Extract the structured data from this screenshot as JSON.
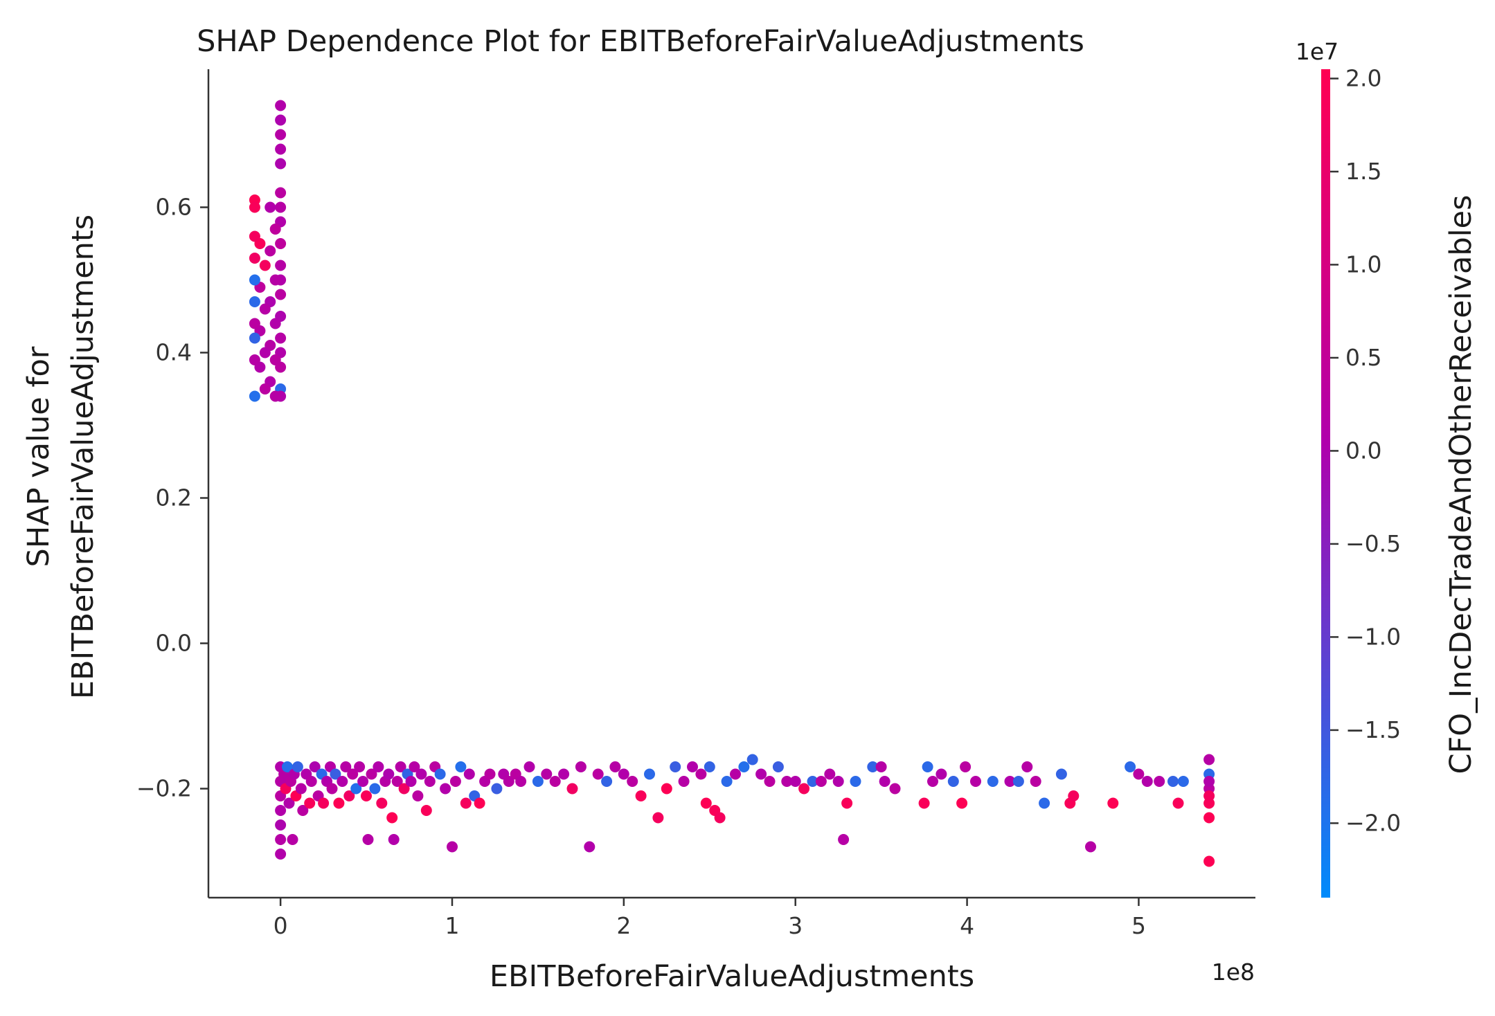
{
  "chart_data": {
    "type": "scatter",
    "title": "SHAP Dependence Plot for EBITBeforeFairValueAdjustments",
    "xlabel": "EBITBeforeFairValueAdjustments",
    "ylabel": [
      "SHAP value for",
      "EBITBeforeFairValueAdjustments"
    ],
    "x_offset_label": "1e8",
    "x_multiplier": 100000000,
    "xlim": [
      -0.42,
      5.68
    ],
    "ylim": [
      -0.35,
      0.79
    ],
    "x_ticks": [
      0,
      1,
      2,
      3,
      4,
      5
    ],
    "x_tick_labels": [
      "0",
      "1",
      "2",
      "3",
      "4",
      "5"
    ],
    "y_ticks": [
      -0.2,
      0.0,
      0.2,
      0.4,
      0.6
    ],
    "y_tick_labels": [
      "−0.2",
      "0.0",
      "0.2",
      "0.4",
      "0.6"
    ],
    "grid": false,
    "legend": "none",
    "colorbar": {
      "label": "CFO_IncDecTradeAndOtherReceivables",
      "offset_label": "1e7",
      "range": [
        -2.4,
        2.05
      ],
      "ticks": [
        -2.0,
        -1.5,
        -1.0,
        -0.5,
        0.0,
        0.5,
        1.0,
        1.5,
        2.0
      ],
      "tick_labels": [
        "−2.0",
        "−1.5",
        "−1.0",
        "−0.5",
        "0.0",
        "0.5",
        "1.0",
        "1.5",
        "2.0"
      ],
      "colormap": [
        "#008bfb",
        "#ff0052"
      ]
    },
    "colors": {
      "blue": "#008bfb",
      "purple": "#b000ac",
      "magenta": "#c8009a",
      "red": "#ff0052"
    },
    "points_note_units": "x in 1e8 units, y in SHAP units, c in 1e7 units",
    "points": [
      [
        0.0,
        0.74,
        0.1
      ],
      [
        0.0,
        0.72,
        0.0
      ],
      [
        0.0,
        0.7,
        0.2
      ],
      [
        0.0,
        0.68,
        0.1
      ],
      [
        0.0,
        0.66,
        0.0
      ],
      [
        0.0,
        0.62,
        0.3
      ],
      [
        0.0,
        0.6,
        0.2
      ],
      [
        0.0,
        0.58,
        0.1
      ],
      [
        0.0,
        0.55,
        0.4
      ],
      [
        0.0,
        0.52,
        0.2
      ],
      [
        0.0,
        0.5,
        0.1
      ],
      [
        0.0,
        0.48,
        0.3
      ],
      [
        0.0,
        0.45,
        0.0
      ],
      [
        0.0,
        0.42,
        0.2
      ],
      [
        0.0,
        0.4,
        0.1
      ],
      [
        0.0,
        0.38,
        0.3
      ],
      [
        0.0,
        0.35,
        -1.8
      ],
      [
        0.0,
        0.34,
        0.1
      ],
      [
        -0.03,
        0.57,
        0.4
      ],
      [
        -0.03,
        0.5,
        0.2
      ],
      [
        -0.03,
        0.44,
        0.1
      ],
      [
        -0.03,
        0.39,
        0.3
      ],
      [
        -0.03,
        0.34,
        0.2
      ],
      [
        -0.06,
        0.6,
        0.1
      ],
      [
        -0.06,
        0.54,
        0.3
      ],
      [
        -0.06,
        0.47,
        0.0
      ],
      [
        -0.06,
        0.41,
        0.2
      ],
      [
        -0.06,
        0.36,
        0.1
      ],
      [
        -0.09,
        0.52,
        1.8
      ],
      [
        -0.09,
        0.46,
        0.2
      ],
      [
        -0.09,
        0.4,
        0.1
      ],
      [
        -0.09,
        0.35,
        0.3
      ],
      [
        -0.12,
        0.55,
        1.9
      ],
      [
        -0.12,
        0.49,
        0.4
      ],
      [
        -0.12,
        0.43,
        0.2
      ],
      [
        -0.12,
        0.38,
        0.1
      ],
      [
        -0.15,
        0.61,
        2.0
      ],
      [
        -0.15,
        0.6,
        1.9
      ],
      [
        -0.15,
        0.56,
        1.8
      ],
      [
        -0.15,
        0.53,
        1.7
      ],
      [
        -0.15,
        0.5,
        -1.9
      ],
      [
        -0.15,
        0.47,
        -1.8
      ],
      [
        -0.15,
        0.44,
        0.3
      ],
      [
        -0.15,
        0.42,
        -1.7
      ],
      [
        -0.15,
        0.39,
        0.2
      ],
      [
        -0.15,
        0.34,
        -1.9
      ],
      [
        0.0,
        -0.29,
        0.1
      ],
      [
        0.0,
        -0.27,
        0.2
      ],
      [
        0.0,
        -0.25,
        0.0
      ],
      [
        0.0,
        -0.23,
        0.1
      ],
      [
        0.0,
        -0.21,
        0.3
      ],
      [
        0.0,
        -0.19,
        0.2
      ],
      [
        0.0,
        -0.17,
        0.1
      ],
      [
        0.02,
        -0.18,
        0.2
      ],
      [
        0.03,
        -0.2,
        1.8
      ],
      [
        0.04,
        -0.17,
        -1.9
      ],
      [
        0.05,
        -0.22,
        0.1
      ],
      [
        0.06,
        -0.19,
        0.3
      ],
      [
        0.07,
        -0.27,
        0.2
      ],
      [
        0.08,
        -0.18,
        0.1
      ],
      [
        0.09,
        -0.21,
        2.0
      ],
      [
        0.1,
        -0.17,
        -1.7
      ],
      [
        0.12,
        -0.2,
        0.2
      ],
      [
        0.13,
        -0.23,
        0.3
      ],
      [
        0.15,
        -0.18,
        0.1
      ],
      [
        0.17,
        -0.22,
        1.9
      ],
      [
        0.18,
        -0.19,
        0.2
      ],
      [
        0.2,
        -0.17,
        0.0
      ],
      [
        0.22,
        -0.21,
        0.3
      ],
      [
        0.24,
        -0.18,
        -1.8
      ],
      [
        0.25,
        -0.22,
        1.8
      ],
      [
        0.27,
        -0.19,
        0.1
      ],
      [
        0.29,
        -0.17,
        0.2
      ],
      [
        0.3,
        -0.2,
        0.3
      ],
      [
        0.32,
        -0.18,
        -1.6
      ],
      [
        0.34,
        -0.22,
        2.0
      ],
      [
        0.36,
        -0.19,
        0.1
      ],
      [
        0.38,
        -0.17,
        0.2
      ],
      [
        0.4,
        -0.21,
        1.7
      ],
      [
        0.42,
        -0.18,
        0.3
      ],
      [
        0.44,
        -0.2,
        -1.9
      ],
      [
        0.46,
        -0.17,
        0.2
      ],
      [
        0.48,
        -0.19,
        0.1
      ],
      [
        0.5,
        -0.21,
        1.9
      ],
      [
        0.51,
        -0.27,
        0.2
      ],
      [
        0.53,
        -0.18,
        0.3
      ],
      [
        0.55,
        -0.2,
        -1.8
      ],
      [
        0.57,
        -0.17,
        0.1
      ],
      [
        0.59,
        -0.22,
        1.8
      ],
      [
        0.61,
        -0.19,
        0.2
      ],
      [
        0.63,
        -0.18,
        0.0
      ],
      [
        0.65,
        -0.24,
        2.0
      ],
      [
        0.66,
        -0.27,
        0.1
      ],
      [
        0.68,
        -0.19,
        0.3
      ],
      [
        0.7,
        -0.17,
        0.2
      ],
      [
        0.72,
        -0.2,
        1.7
      ],
      [
        0.74,
        -0.18,
        -1.7
      ],
      [
        0.76,
        -0.19,
        0.1
      ],
      [
        0.78,
        -0.17,
        0.2
      ],
      [
        0.8,
        -0.21,
        0.3
      ],
      [
        0.82,
        -0.18,
        0.1
      ],
      [
        0.85,
        -0.23,
        1.9
      ],
      [
        0.87,
        -0.19,
        0.2
      ],
      [
        0.9,
        -0.17,
        0.3
      ],
      [
        0.93,
        -0.18,
        -1.8
      ],
      [
        0.96,
        -0.2,
        0.1
      ],
      [
        1.0,
        -0.28,
        0.2
      ],
      [
        1.02,
        -0.19,
        0.3
      ],
      [
        1.05,
        -0.17,
        -1.9
      ],
      [
        1.08,
        -0.22,
        1.8
      ],
      [
        1.1,
        -0.18,
        0.1
      ],
      [
        1.13,
        -0.21,
        -1.7
      ],
      [
        1.16,
        -0.22,
        2.0
      ],
      [
        1.19,
        -0.19,
        0.2
      ],
      [
        1.22,
        -0.18,
        0.3
      ],
      [
        1.26,
        -0.2,
        -1.6
      ],
      [
        1.3,
        -0.18,
        0.1
      ],
      [
        1.33,
        -0.19,
        0.2
      ],
      [
        1.37,
        -0.18,
        0.3
      ],
      [
        1.4,
        -0.19,
        0.2
      ],
      [
        1.45,
        -0.17,
        0.1
      ],
      [
        1.5,
        -0.19,
        -1.8
      ],
      [
        1.55,
        -0.18,
        0.2
      ],
      [
        1.6,
        -0.19,
        0.3
      ],
      [
        1.65,
        -0.18,
        0.1
      ],
      [
        1.7,
        -0.2,
        1.7
      ],
      [
        1.75,
        -0.17,
        0.2
      ],
      [
        1.8,
        -0.28,
        0.1
      ],
      [
        1.85,
        -0.18,
        0.3
      ],
      [
        1.9,
        -0.19,
        -1.7
      ],
      [
        1.95,
        -0.17,
        0.2
      ],
      [
        2.0,
        -0.18,
        0.1
      ],
      [
        2.05,
        -0.19,
        0.3
      ],
      [
        2.1,
        -0.21,
        1.9
      ],
      [
        2.15,
        -0.18,
        -1.8
      ],
      [
        2.2,
        -0.24,
        1.8
      ],
      [
        2.25,
        -0.2,
        2.0
      ],
      [
        2.3,
        -0.17,
        -1.6
      ],
      [
        2.35,
        -0.19,
        0.2
      ],
      [
        2.4,
        -0.17,
        0.1
      ],
      [
        2.45,
        -0.18,
        0.3
      ],
      [
        2.48,
        -0.22,
        2.0
      ],
      [
        2.5,
        -0.17,
        -1.7
      ],
      [
        2.53,
        -0.23,
        1.9
      ],
      [
        2.56,
        -0.24,
        1.8
      ],
      [
        2.6,
        -0.19,
        -1.8
      ],
      [
        2.65,
        -0.18,
        0.2
      ],
      [
        2.7,
        -0.17,
        -1.9
      ],
      [
        2.75,
        -0.16,
        -1.7
      ],
      [
        2.8,
        -0.18,
        0.1
      ],
      [
        2.85,
        -0.19,
        0.3
      ],
      [
        2.9,
        -0.17,
        -1.6
      ],
      [
        2.95,
        -0.19,
        0.2
      ],
      [
        3.0,
        -0.19,
        0.1
      ],
      [
        3.05,
        -0.2,
        1.8
      ],
      [
        3.1,
        -0.19,
        -1.7
      ],
      [
        3.15,
        -0.19,
        0.3
      ],
      [
        3.2,
        -0.18,
        0.2
      ],
      [
        3.25,
        -0.19,
        0.1
      ],
      [
        3.28,
        -0.27,
        0.2
      ],
      [
        3.3,
        -0.22,
        1.9
      ],
      [
        3.35,
        -0.19,
        -1.8
      ],
      [
        3.45,
        -0.17,
        -1.7
      ],
      [
        3.5,
        -0.17,
        0.2
      ],
      [
        3.52,
        -0.19,
        0.1
      ],
      [
        3.58,
        -0.2,
        0.3
      ],
      [
        3.75,
        -0.22,
        1.9
      ],
      [
        3.77,
        -0.17,
        -1.8
      ],
      [
        3.8,
        -0.19,
        0.2
      ],
      [
        3.85,
        -0.18,
        0.1
      ],
      [
        3.92,
        -0.19,
        -1.7
      ],
      [
        3.97,
        -0.22,
        2.0
      ],
      [
        3.99,
        -0.17,
        0.3
      ],
      [
        4.05,
        -0.19,
        0.2
      ],
      [
        4.15,
        -0.19,
        -1.8
      ],
      [
        4.25,
        -0.19,
        0.1
      ],
      [
        4.3,
        -0.19,
        -1.7
      ],
      [
        4.35,
        -0.17,
        0.2
      ],
      [
        4.4,
        -0.19,
        0.3
      ],
      [
        4.45,
        -0.22,
        -1.8
      ],
      [
        4.55,
        -0.18,
        -1.7
      ],
      [
        4.6,
        -0.22,
        1.9
      ],
      [
        4.62,
        -0.21,
        1.8
      ],
      [
        4.72,
        -0.28,
        0.2
      ],
      [
        4.85,
        -0.22,
        2.0
      ],
      [
        4.95,
        -0.17,
        -1.8
      ],
      [
        5.0,
        -0.18,
        0.3
      ],
      [
        5.05,
        -0.19,
        0.1
      ],
      [
        5.12,
        -0.19,
        0.2
      ],
      [
        5.2,
        -0.19,
        -1.7
      ],
      [
        5.23,
        -0.22,
        1.9
      ],
      [
        5.26,
        -0.19,
        -1.8
      ],
      [
        5.41,
        -0.16,
        0.2
      ],
      [
        5.41,
        -0.18,
        -1.8
      ],
      [
        5.41,
        -0.2,
        0.3
      ],
      [
        5.41,
        -0.22,
        1.9
      ],
      [
        5.41,
        -0.24,
        2.0
      ],
      [
        5.41,
        -0.21,
        1.8
      ],
      [
        5.41,
        -0.19,
        0.1
      ],
      [
        5.41,
        -0.3,
        2.0
      ]
    ]
  }
}
